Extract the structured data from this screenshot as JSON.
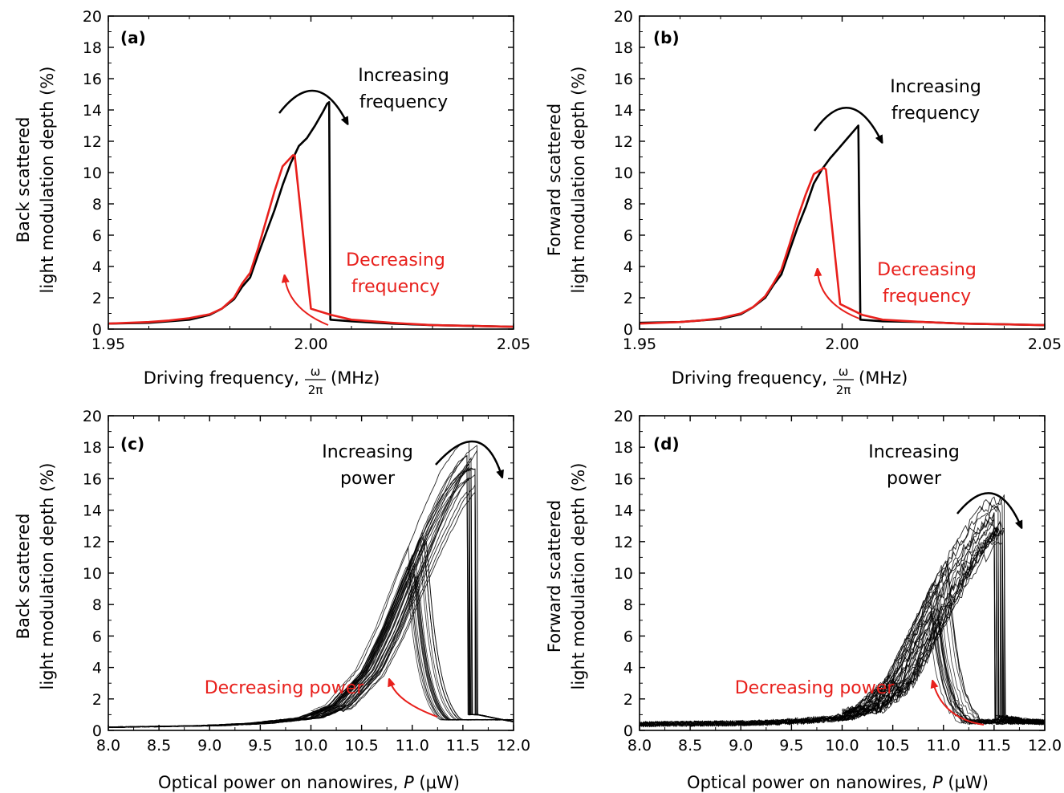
{
  "colors": {
    "increasing": "#000000",
    "decreasing": "#e8201c"
  },
  "chart_data": [
    {
      "type": "line",
      "panel_label": "(a)",
      "xlim": [
        1.95,
        2.05
      ],
      "ylim": [
        0,
        20
      ],
      "x_ticks": [
        "1.95",
        "2.00",
        "2.05"
      ],
      "x_tick_values": [
        1.95,
        2.0,
        2.05
      ],
      "y_ticks": [
        "0",
        "2",
        "4",
        "6",
        "8",
        "10",
        "12",
        "14",
        "16",
        "18",
        "20"
      ],
      "xlabel_prefix": "Driving frequency,",
      "xlabel_frac_num": "ω",
      "xlabel_frac_den": "2π",
      "xlabel_suffix": "(MHz)",
      "ylabel_line1": "Back scattered",
      "ylabel_line2": "light modulation depth (%)",
      "annotations": {
        "increasing_line1": "Increasing",
        "increasing_line2": "frequency",
        "decreasing_line1": "Decreasing",
        "decreasing_line2": "frequency"
      },
      "series": [
        {
          "color": "#000000",
          "x": [
            1.95,
            1.96,
            1.965,
            1.97,
            1.975,
            1.978,
            1.981,
            1.983,
            1.985,
            1.987,
            1.989,
            1.991,
            1.993,
            1.995,
            1.997,
            1.999,
            2.001,
            2.003,
            2.004,
            2.0045,
            2.0048,
            2.01,
            2.02,
            2.03,
            2.04,
            2.05
          ],
          "y": [
            0.35,
            0.4,
            0.5,
            0.6,
            0.9,
            1.3,
            1.9,
            2.7,
            3.3,
            4.8,
            6.2,
            7.6,
            9.2,
            10.6,
            11.7,
            12.2,
            13.0,
            13.9,
            14.4,
            14.5,
            0.6,
            0.5,
            0.35,
            0.25,
            0.2,
            0.15
          ]
        },
        {
          "color": "#e8201c",
          "x": [
            1.95,
            1.96,
            1.965,
            1.97,
            1.975,
            1.978,
            1.981,
            1.983,
            1.985,
            1.987,
            1.989,
            1.991,
            1.993,
            1.9955,
            1.996,
            2.0,
            2.005,
            2.01,
            2.02,
            2.03,
            2.04,
            2.05
          ],
          "y": [
            0.35,
            0.45,
            0.55,
            0.7,
            0.95,
            1.3,
            2.0,
            2.9,
            3.6,
            5.2,
            7.0,
            8.8,
            10.4,
            11.1,
            11.1,
            1.3,
            0.9,
            0.6,
            0.4,
            0.25,
            0.2,
            0.15
          ]
        }
      ]
    },
    {
      "type": "line",
      "panel_label": "(b)",
      "xlim": [
        1.95,
        2.05
      ],
      "ylim": [
        0,
        20
      ],
      "x_ticks": [
        "1.95",
        "2.00",
        "2.05"
      ],
      "x_tick_values": [
        1.95,
        2.0,
        2.05
      ],
      "y_ticks": [
        "0",
        "2",
        "4",
        "6",
        "8",
        "10",
        "12",
        "14",
        "16",
        "18",
        "20"
      ],
      "xlabel_prefix": "Driving frequency,",
      "xlabel_frac_num": "ω",
      "xlabel_frac_den": "2π",
      "xlabel_suffix": "(MHz)",
      "ylabel_line1": "Forward scattered",
      "ylabel_line2": "light modulation depth (%)",
      "annotations": {
        "increasing_line1": "Increasing",
        "increasing_line2": "frequency",
        "decreasing_line1": "Decreasing",
        "decreasing_line2": "frequency"
      },
      "series": [
        {
          "color": "#000000",
          "x": [
            1.95,
            1.96,
            1.965,
            1.97,
            1.975,
            1.978,
            1.981,
            1.983,
            1.985,
            1.987,
            1.989,
            1.991,
            1.993,
            1.995,
            1.997,
            1.999,
            2.001,
            2.003,
            2.004,
            2.0045,
            2.01,
            2.02,
            2.03,
            2.04,
            2.05
          ],
          "y": [
            0.4,
            0.45,
            0.55,
            0.65,
            0.95,
            1.4,
            2.0,
            2.8,
            3.5,
            5.0,
            6.5,
            7.8,
            9.3,
            10.2,
            10.9,
            11.5,
            12.1,
            12.7,
            13.0,
            0.6,
            0.5,
            0.45,
            0.35,
            0.3,
            0.25
          ]
        },
        {
          "color": "#e8201c",
          "x": [
            1.95,
            1.96,
            1.965,
            1.97,
            1.975,
            1.978,
            1.981,
            1.983,
            1.985,
            1.987,
            1.989,
            1.991,
            1.993,
            1.9955,
            1.996,
            1.9995,
            2.005,
            2.01,
            2.02,
            2.03,
            2.04,
            2.05
          ],
          "y": [
            0.35,
            0.45,
            0.55,
            0.7,
            1.0,
            1.4,
            2.1,
            2.9,
            3.8,
            5.4,
            7.1,
            8.6,
            9.9,
            10.3,
            10.2,
            1.6,
            0.9,
            0.6,
            0.45,
            0.35,
            0.3,
            0.25
          ]
        }
      ]
    },
    {
      "type": "line",
      "panel_label": "(c)",
      "xlim": [
        8.0,
        12.0
      ],
      "ylim": [
        0,
        20
      ],
      "x_ticks": [
        "8.0",
        "8.5",
        "9.0",
        "9.5",
        "10.0",
        "10.5",
        "11.0",
        "11.5",
        "12.0"
      ],
      "x_tick_values": [
        8.0,
        8.5,
        9.0,
        9.5,
        10.0,
        10.5,
        11.0,
        11.5,
        12.0
      ],
      "y_ticks": [
        "0",
        "2",
        "4",
        "6",
        "8",
        "10",
        "12",
        "14",
        "16",
        "18",
        "20"
      ],
      "xlabel_prefix": "Optical power on nanowires,",
      "xlabel_var": "P",
      "xlabel_suffix": "(μW)",
      "ylabel_line1": "Back scattered",
      "ylabel_line2": "light modulation depth (%)",
      "annotations": {
        "increasing_line1": "Increasing",
        "increasing_line2": "power",
        "decreasing_line1": "Decreasing power"
      },
      "bundle": {
        "color": "#000000",
        "up_x": [
          8.0,
          9.0,
          9.5,
          10.0,
          10.3,
          10.6,
          10.8,
          11.0,
          11.2,
          11.4,
          11.55,
          11.65
        ],
        "up_y": [
          0.2,
          0.3,
          0.45,
          0.8,
          1.6,
          3.8,
          6.5,
          9.8,
          13.0,
          15.8,
          17.2,
          17.7
        ],
        "jump_x": [
          11.55,
          11.65
        ],
        "tail_x": [
          11.65,
          11.8,
          12.0
        ],
        "tail_y": [
          1.0,
          0.8,
          0.55
        ],
        "down_peak_x": [
          10.95,
          11.15
        ],
        "down_peak_y": [
          7.5,
          9.5
        ],
        "trace_count": 20,
        "noise": 0.05
      }
    },
    {
      "type": "line",
      "panel_label": "(d)",
      "xlim": [
        8.0,
        12.0
      ],
      "ylim": [
        0,
        20
      ],
      "x_ticks": [
        "8.0",
        "8.5",
        "9.0",
        "9.5",
        "10.0",
        "10.5",
        "11.0",
        "11.5",
        "12.0"
      ],
      "x_tick_values": [
        8.0,
        8.5,
        9.0,
        9.5,
        10.0,
        10.5,
        11.0,
        11.5,
        12.0
      ],
      "y_ticks": [
        "0",
        "2",
        "4",
        "6",
        "8",
        "10",
        "12",
        "14",
        "16",
        "18",
        "20"
      ],
      "xlabel_prefix": "Optical power on nanowires,",
      "xlabel_var": "P",
      "xlabel_suffix": "(μW)",
      "ylabel_line1": "Forward scattered",
      "ylabel_line2": "light modulation depth (%)",
      "annotations": {
        "increasing_line1": "Increasing",
        "increasing_line2": "power",
        "decreasing_line1": "Decreasing power"
      },
      "bundle": {
        "color": "#000000",
        "up_x": [
          8.0,
          9.0,
          9.5,
          10.0,
          10.3,
          10.6,
          10.8,
          11.0,
          11.2,
          11.4,
          11.5,
          11.6
        ],
        "up_y": [
          0.4,
          0.45,
          0.55,
          0.8,
          1.5,
          3.2,
          5.8,
          8.5,
          11.0,
          12.8,
          13.6,
          14.0
        ],
        "jump_x": [
          11.5,
          11.62
        ],
        "tail_x": [
          11.62,
          11.8,
          12.0
        ],
        "tail_y": [
          0.8,
          0.6,
          0.5
        ],
        "down_peak_x": [
          10.85,
          11.05
        ],
        "down_peak_y": [
          6.0,
          8.5
        ],
        "trace_count": 20,
        "noise": 0.35
      }
    }
  ]
}
